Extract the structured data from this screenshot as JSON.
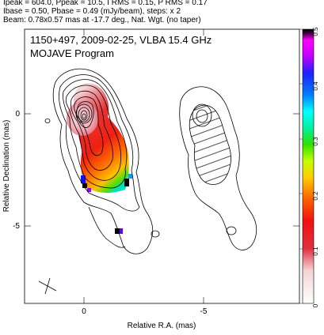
{
  "header": {
    "line1": "Ipeak = 604.0, Ppeak = 10.5, I RMS = 0.15, P RMS = 0.17",
    "line2": "Ibase = 0.50, Pbase = 0.49 (mJy/beam), steps: x 2",
    "line3": "Beam: 0.78x0.57 mas at -17.7 deg., Nat. Wgt. (no taper)"
  },
  "plot": {
    "title_line1": "1150+497, 2009-02-25, VLBA 15.4 GHz",
    "title_line2": "MOJAVE Program",
    "xlabel": "Relative R.A. (mas)",
    "ylabel": "Relative Declination (mas)",
    "x_ticks": [
      "0",
      "-5"
    ],
    "y_ticks": [
      "0",
      "-5"
    ],
    "colorbar_ticks": [
      "0",
      "0.1",
      "0.2",
      "0.3",
      "0.4",
      "0.5"
    ]
  }
}
